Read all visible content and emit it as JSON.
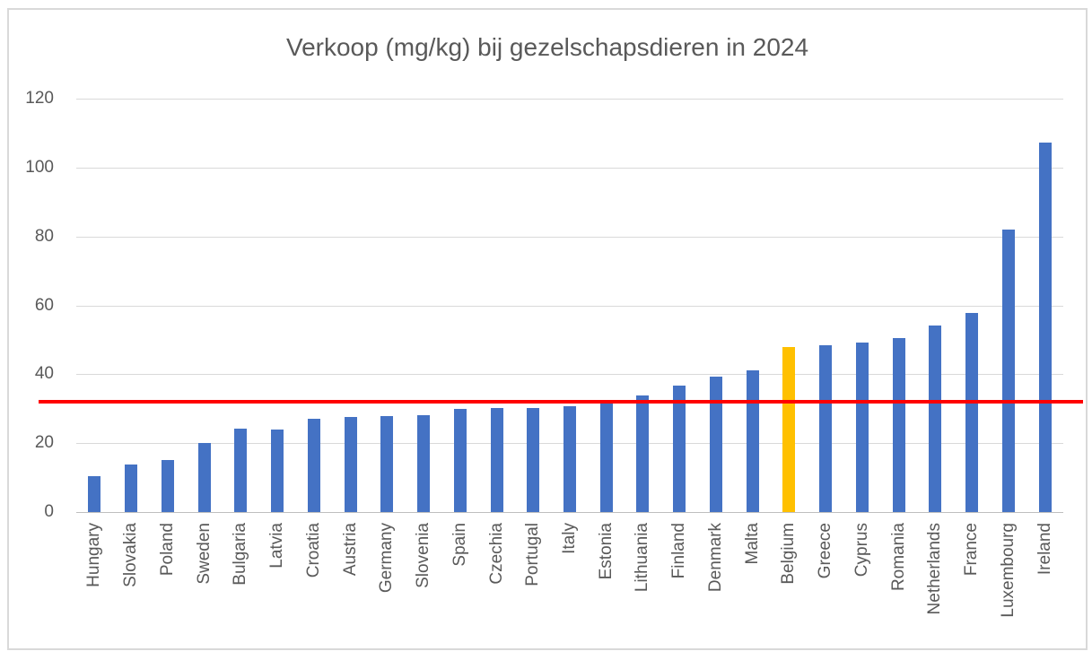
{
  "chart_data": {
    "type": "bar",
    "title": "Verkoop (mg/kg) bij gezelschapsdieren in 2024",
    "xlabel": "",
    "ylabel": "",
    "ylim": [
      0,
      120
    ],
    "y_ticks": [
      0,
      20,
      40,
      60,
      80,
      100,
      120
    ],
    "grid": true,
    "legend": "none",
    "bar_color": "#4472C4",
    "highlight_category": "Belgium",
    "highlight_color": "#FFC000",
    "reference_line": {
      "value": 32,
      "color": "#FF0000"
    },
    "categories": [
      "Hungary",
      "Slovakia",
      "Poland",
      "Sweden",
      "Bulgaria",
      "Latvia",
      "Croatia",
      "Austria",
      "Germany",
      "Slovenia",
      "Spain",
      "Czechia",
      "Portugal",
      "Italy",
      "Estonia",
      "Lithuania",
      "Finland",
      "Denmark",
      "Malta",
      "Belgium",
      "Greece",
      "Cyprus",
      "Romania",
      "Netherlands",
      "France",
      "Luxembourg",
      "Ireland"
    ],
    "values": [
      10.3,
      13.9,
      15.2,
      20,
      24.1,
      24,
      27.2,
      27.5,
      27.9,
      28.1,
      30,
      30.3,
      30.1,
      30.6,
      31.7,
      33.8,
      36.8,
      39.3,
      41.1,
      47.8,
      48.4,
      49.2,
      50.6,
      54.2,
      57.7,
      82.1,
      107.2
    ],
    "text_color": "#595959",
    "gridline_color": "#D9D9D9",
    "axis_line_color": "#BFBFBF",
    "frame_border_color": "#D9D9D9"
  }
}
